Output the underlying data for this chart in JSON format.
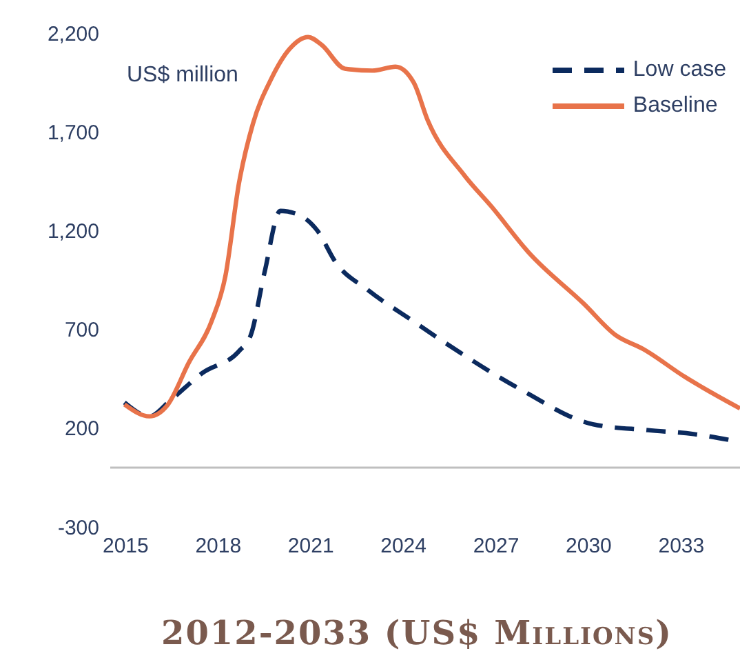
{
  "chart_data": {
    "type": "line",
    "title": "2012-2033 (US$ Millions)",
    "annotations": [
      "US$ million"
    ],
    "xlim": [
      2014.5,
      2034.9
    ],
    "xticks": [
      2015,
      2018,
      2021,
      2024,
      2027,
      2030,
      2033
    ],
    "ylim": [
      -300,
      2200
    ],
    "yticks": [
      -300,
      200,
      700,
      {
        "value": 1200,
        "label": "1,200"
      },
      {
        "value": 1700,
        "label": "1,700"
      },
      {
        "value": 2200,
        "label": "2,200"
      }
    ],
    "ref_lines": [
      {
        "axis": "y",
        "value": 0,
        "color": "#bfbfbf"
      }
    ],
    "legend": "top right",
    "grid": false,
    "marker": "none",
    "series": [
      {
        "name": "Low case",
        "line_style": "dashed",
        "color": "#0b2a5e",
        "x": [
          2014.96,
          2015.77,
          2016.44,
          2017.49,
          2018.67,
          2019.05,
          2019.5,
          2020.01,
          2020.61,
          2021.21,
          2021.8,
          2022.84,
          2024.33,
          2025.37,
          2027.75,
          2030.13,
          2031.92,
          2033.4,
          2034.9
        ],
        "values": [
          330,
          260,
          340,
          480,
          590,
          670,
          990,
          1300,
          1280,
          1200,
          1040,
          900,
          740,
          630,
          400,
          220,
          190,
          170,
          130
        ]
      },
      {
        "name": "Baseline",
        "line_style": "solid",
        "color": "#e8734a",
        "x": [
          2014.96,
          2015.77,
          2016.37,
          2017.04,
          2017.78,
          2018.23,
          2018.67,
          2019.12,
          2019.72,
          2020.31,
          2020.91,
          2021.35,
          2022.1,
          2022.99,
          2023.74,
          2024.33,
          2024.78,
          2025.97,
          2026.86,
          2028.05,
          2029.84,
          2030.88,
          2031.77,
          2033.11,
          2034.9
        ],
        "values": [
          320,
          260,
          320,
          530,
          740,
          970,
          1440,
          1740,
          1970,
          2120,
          2180,
          2140,
          2020,
          2010,
          2030,
          1950,
          1760,
          1480,
          1320,
          1090,
          830,
          670,
          600,
          460,
          300
        ]
      }
    ]
  }
}
